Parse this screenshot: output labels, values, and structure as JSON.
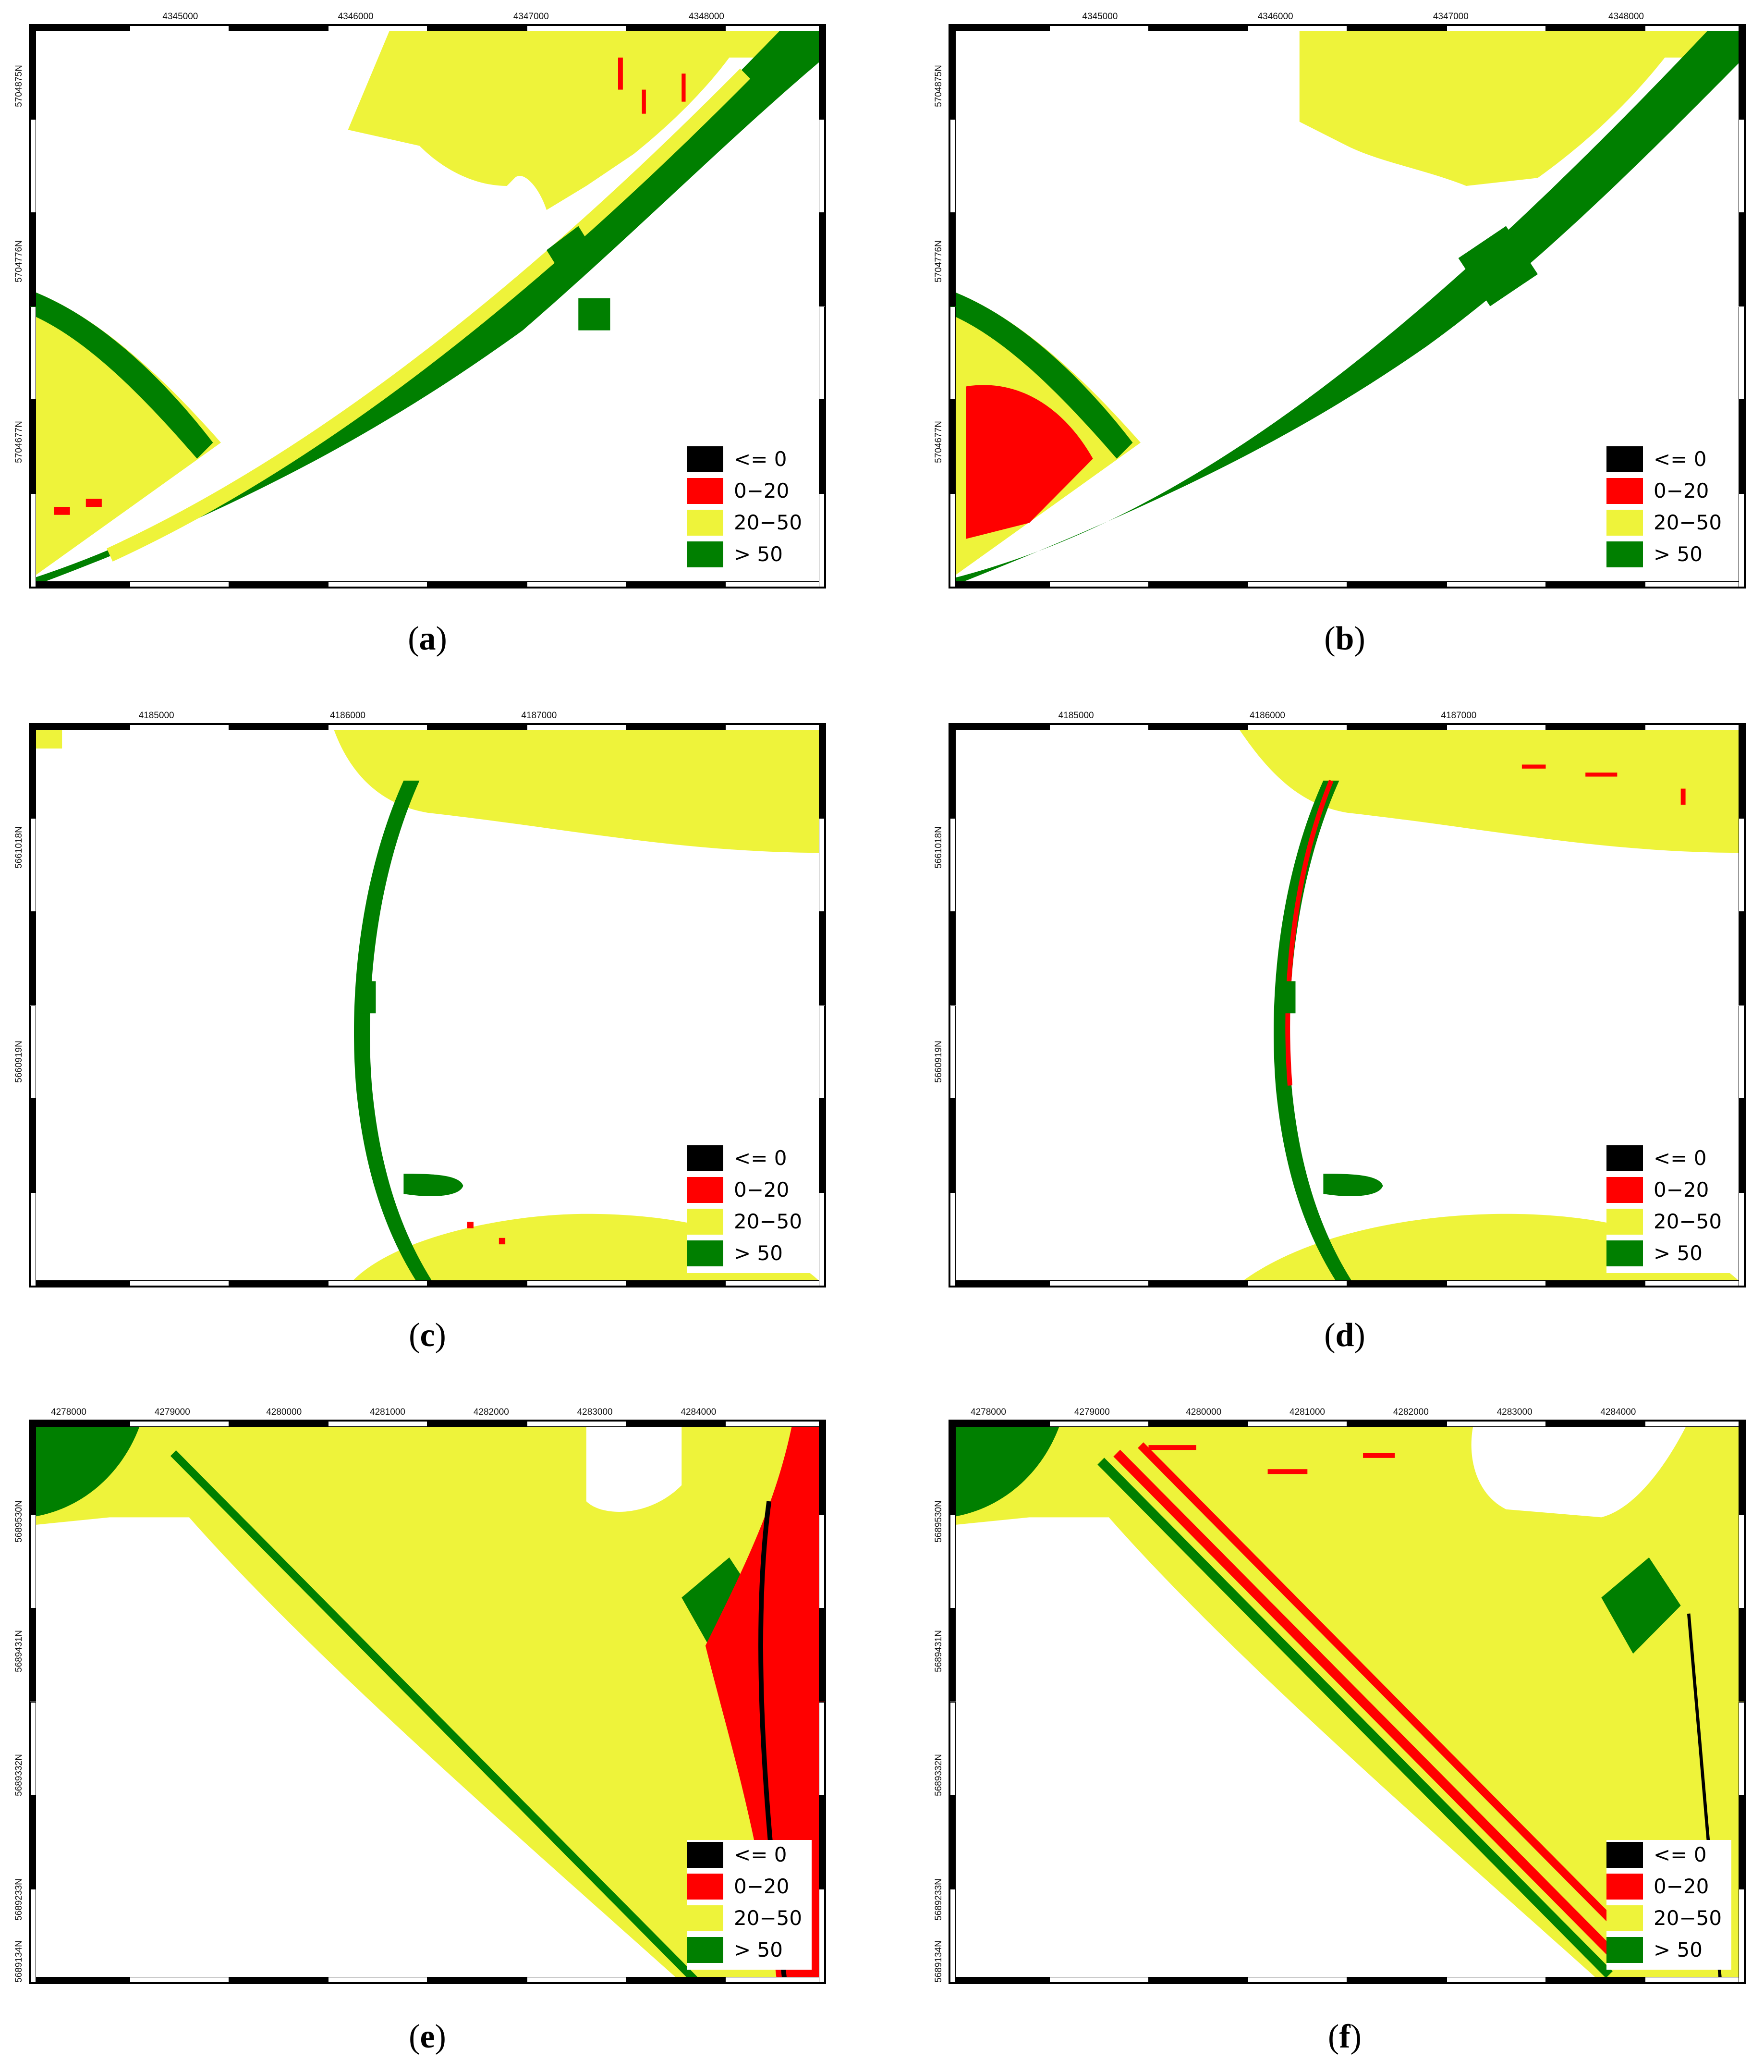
{
  "colors": {
    "class_le0": "#000000",
    "class_0_20": "#ff0000",
    "class_20_50": "#eef33a",
    "class_gt50": "#007f00",
    "frame": "#000000"
  },
  "legend": [
    {
      "label": "<= 0",
      "color": "#000000"
    },
    {
      "label": "0−20",
      "color": "#ff0000"
    },
    {
      "label": "20−50",
      "color": "#eef33a"
    },
    {
      "label": "> 50",
      "color": "#007f00"
    }
  ],
  "panels": [
    {
      "caption_letter": "a",
      "x_ticks": [
        "4345000",
        "4346000",
        "4347000",
        "4348000"
      ],
      "y_ticks": [
        "5704875N",
        "5704776N",
        "5704677N"
      ]
    },
    {
      "caption_letter": "b",
      "x_ticks": [
        "4345000",
        "4346000",
        "4347000",
        "4348000"
      ],
      "y_ticks": [
        "5704875N",
        "5704776N",
        "5704677N"
      ]
    },
    {
      "caption_letter": "c",
      "x_ticks": [
        "4185000",
        "4186000",
        "4187000"
      ],
      "y_ticks": [
        "5661018N",
        "5660919N"
      ]
    },
    {
      "caption_letter": "d",
      "x_ticks": [
        "4185000",
        "4186000",
        "4187000"
      ],
      "y_ticks": [
        "5661018N",
        "5660919N"
      ]
    },
    {
      "caption_letter": "e",
      "x_ticks": [
        "4278000",
        "4279000",
        "4280000",
        "4281000",
        "4282000",
        "4283000",
        "4284000"
      ],
      "y_ticks": [
        "5689530N",
        "5689431N",
        "5689332N",
        "5689233N",
        "5689134N"
      ]
    },
    {
      "caption_letter": "f",
      "x_ticks": [
        "4278000",
        "4279000",
        "4280000",
        "4281000",
        "4282000",
        "4283000",
        "4284000"
      ],
      "y_ticks": [
        "5689530N",
        "5689431N",
        "5689332N",
        "5689233N",
        "5689134N"
      ]
    }
  ]
}
